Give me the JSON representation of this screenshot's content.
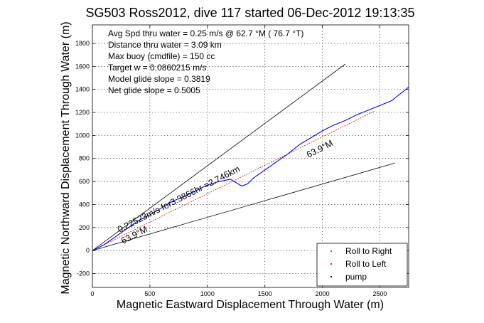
{
  "chart_data": {
    "type": "line",
    "title": "SG503 Ross2012, dive 117 started 06-Dec-2012 19:13:35",
    "xlabel": "Magnetic Eastward Displacement Through Water (m)",
    "ylabel": "Magnetic Northward Displacement Through Water (m)",
    "xlim": [
      0,
      2750
    ],
    "ylim": [
      -320,
      1960
    ],
    "x_ticks": [
      0,
      500,
      1000,
      1500,
      2000,
      2500
    ],
    "y_ticks": [
      -200,
      0,
      200,
      400,
      600,
      800,
      1000,
      1200,
      1400,
      1600,
      1800
    ],
    "grid": true,
    "legend_position": "bottom-right",
    "info_lines": [
      "Avg Spd thru water =  0.25 m/s @  62.7   °M ( 76.7 °T)",
      "Distance thru water =  3.09 km",
      "Max buoy (cmdfile) = 150 cc",
      "Target w = 0.0860215 m/s",
      "Model glide slope = 0.3819",
      "Net glide slope = 0.5005"
    ],
    "annotations": {
      "track_speed": "0.22523m/s for3.3866hr =2.746km",
      "heading_start": "63.9°M",
      "heading_end": "63.9°M"
    },
    "legend": [
      "Roll to Right",
      "Roll to Left",
      "pump"
    ],
    "series": [
      {
        "name": "track",
        "color": "#0000ff",
        "x": [
          0,
          100,
          200,
          300,
          400,
          500,
          600,
          700,
          800,
          900,
          1000,
          1100,
          1200,
          1300,
          1350,
          1400,
          1500,
          1600,
          1700,
          1800,
          1900,
          2000,
          2100,
          2200,
          2300,
          2400,
          2500,
          2600,
          2700,
          2750
        ],
        "y": [
          0,
          50,
          120,
          190,
          260,
          310,
          370,
          430,
          470,
          520,
          570,
          600,
          620,
          560,
          580,
          630,
          700,
          770,
          840,
          920,
          980,
          1040,
          1090,
          1130,
          1180,
          1220,
          1260,
          1300,
          1380,
          1420
        ]
      },
      {
        "name": "net-track",
        "color": "#ff0000",
        "x": [
          0,
          2450
        ],
        "y": [
          0,
          1210
        ]
      },
      {
        "name": "glide-upper",
        "color": "#000000",
        "x": [
          0,
          2200
        ],
        "y": [
          0,
          1620
        ]
      },
      {
        "name": "glide-lower",
        "color": "#000000",
        "x": [
          0,
          2630
        ],
        "y": [
          0,
          760
        ]
      }
    ]
  }
}
